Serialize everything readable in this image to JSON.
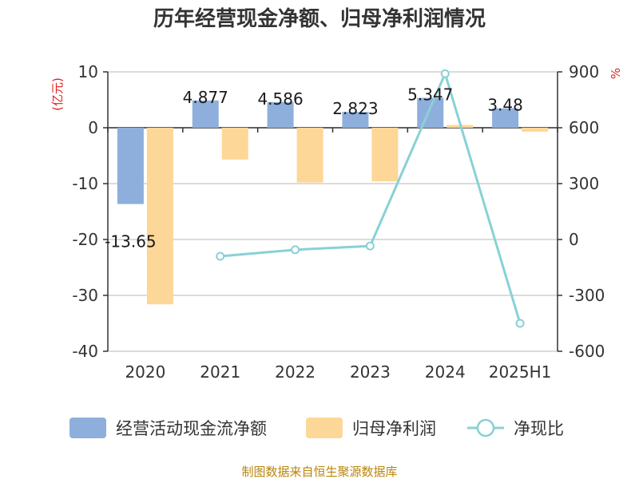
{
  "chart_data": {
    "type": "bar",
    "title": "历年经营现金净额、归母净利润情况",
    "categories": [
      "2020",
      "2021",
      "2022",
      "2023",
      "2024",
      "2025H1"
    ],
    "y_left": {
      "unit": "(亿元)",
      "ylim": [
        -40,
        10
      ],
      "ticks": [
        10,
        0,
        -10,
        -20,
        -30,
        -40
      ]
    },
    "y_right": {
      "unit": "%",
      "ylim": [
        -600,
        900
      ],
      "ticks": [
        900,
        600,
        300,
        0,
        -300,
        -600
      ]
    },
    "grid": true,
    "legend_position": "bottom",
    "series": [
      {
        "name": "经营活动现金流净额",
        "kind": "bar",
        "axis": "left",
        "color": "#8eafdc",
        "values": [
          -13.65,
          4.877,
          4.586,
          2.823,
          5.347,
          3.48
        ],
        "labels": [
          "-13.65",
          "4.877",
          "4.586",
          "2.823",
          "5.347",
          "3.48"
        ]
      },
      {
        "name": "归母净利润",
        "kind": "bar",
        "axis": "left",
        "color": "#fdd797",
        "values": [
          -31.6,
          -5.7,
          -9.8,
          -9.6,
          0.5,
          -0.7
        ]
      },
      {
        "name": "净现比",
        "kind": "line",
        "axis": "right",
        "color": "#88d1d6",
        "values": [
          null,
          -90,
          -55,
          -35,
          890,
          -450
        ]
      }
    ]
  },
  "source_text": "制图数据来自恒生聚源数据库"
}
